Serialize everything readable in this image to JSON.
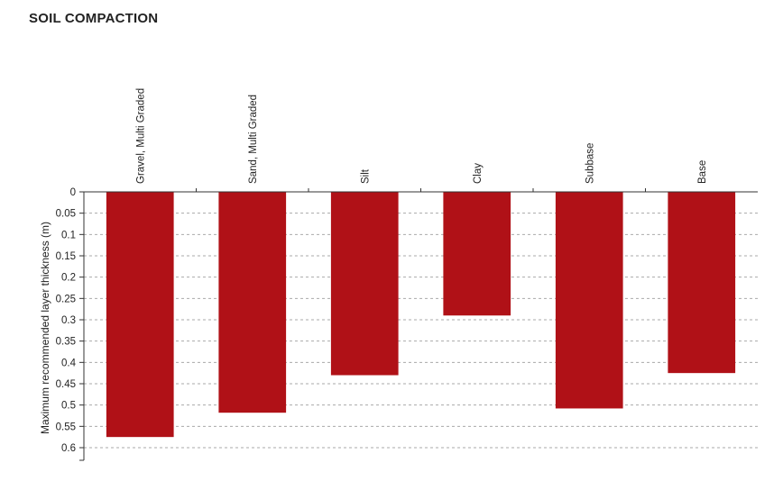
{
  "chart_data": {
    "type": "bar",
    "title": "SOIL COMPACTION",
    "ylabel": "Maximum recommended layer thickness (m)",
    "xlabel": "",
    "categories": [
      "Gravel, Multi Graded",
      "Sand, Multi Graded",
      "Silt",
      "Clay",
      "Subbase",
      "Base"
    ],
    "values": [
      0.575,
      0.518,
      0.43,
      0.29,
      0.508,
      0.425
    ],
    "ylim": [
      0,
      0.6
    ],
    "y_inverted": true,
    "yticks": [
      "0",
      "0.05",
      "0.1",
      "0.15",
      "0.2",
      "0.25",
      "0.3",
      "0.35",
      "0.4",
      "0.45",
      "0.5",
      "0.55",
      "0.6"
    ],
    "grid": true,
    "bar_color": "#b01117",
    "grid_color": "#aaaaaa"
  }
}
